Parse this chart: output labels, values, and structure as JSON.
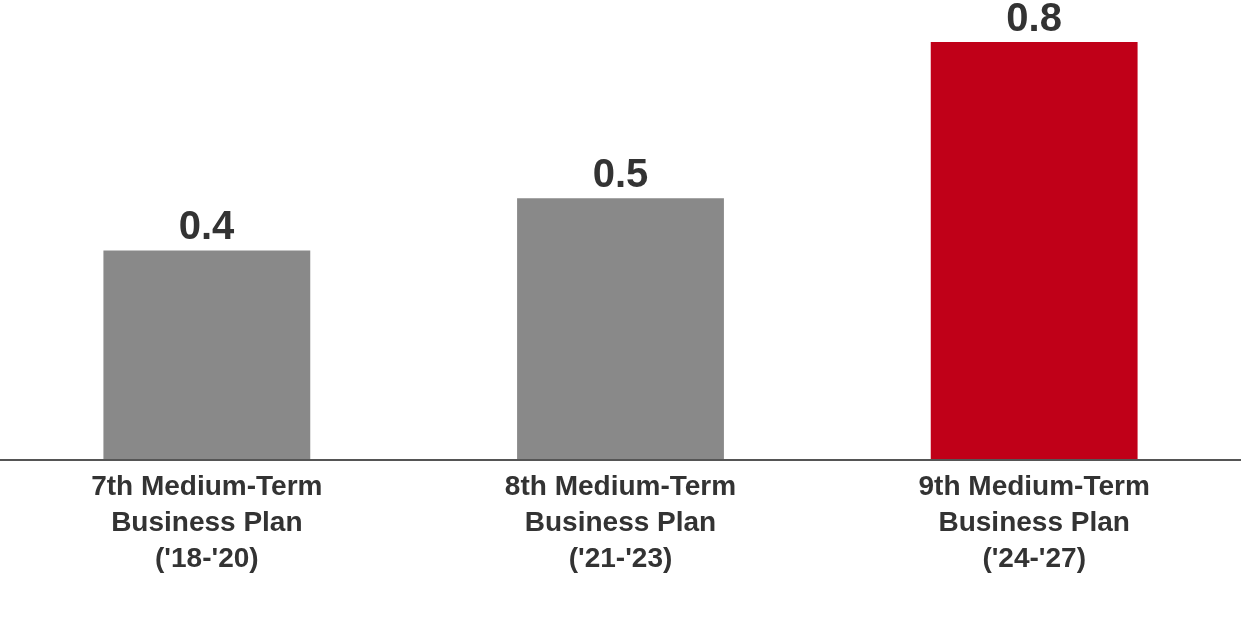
{
  "chart_data": {
    "type": "bar",
    "categories": [
      "7th Medium-Term\nBusiness Plan\n('18-'20)",
      "8th Medium-Term\nBusiness Plan\n('21-'23)",
      "9th Medium-Term\nBusiness Plan\n('24-'27)"
    ],
    "values": [
      0.4,
      0.5,
      0.8
    ],
    "colors": [
      "#898989",
      "#898989",
      "#c00018"
    ],
    "tick_labels": "x",
    "data_labels": true,
    "legend": false
  }
}
